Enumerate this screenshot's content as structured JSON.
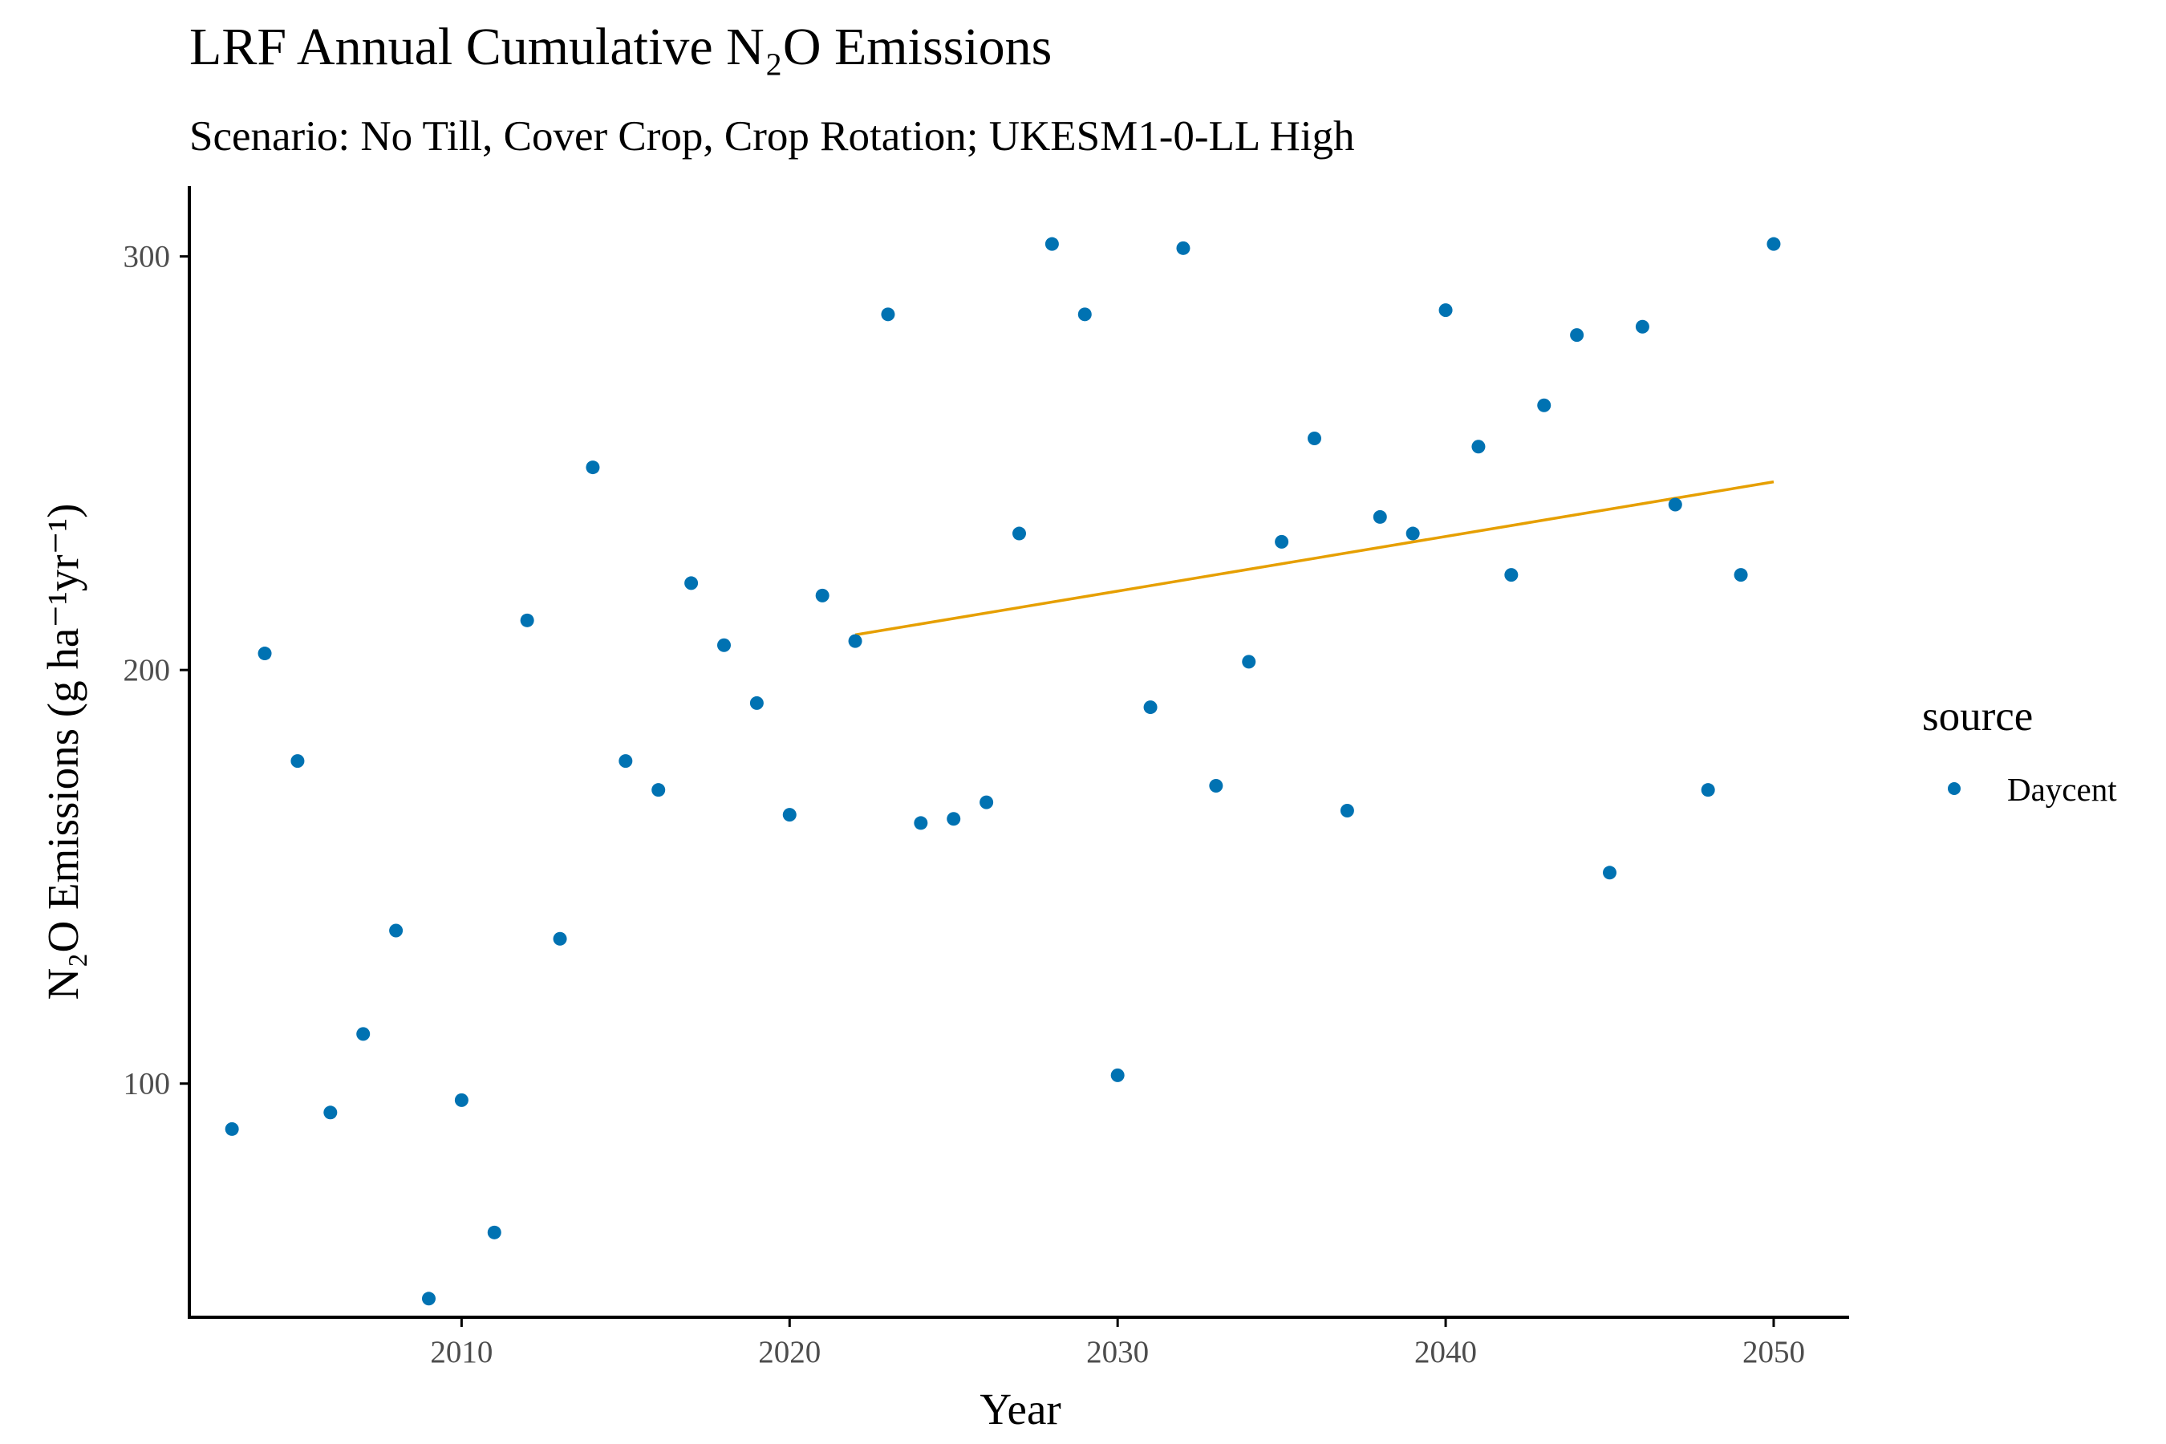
{
  "chart_data": {
    "type": "scatter",
    "title": "LRF Annual Cumulative N₂O Emissions",
    "subtitle": "Scenario: No Till, Cover Crop, Crop Rotation; UKESM1-0-LL High",
    "xlabel": "Year",
    "ylabel": "N₂O Emissions (g ha⁻¹yr⁻¹)",
    "xlim": [
      2001.7,
      2052.3
    ],
    "ylim": [
      43.5,
      317
    ],
    "x_ticks": [
      2010,
      2020,
      2030,
      2040,
      2050
    ],
    "y_ticks": [
      100,
      200,
      300
    ],
    "grid": false,
    "legend": {
      "title": "source",
      "position": "right",
      "entries": [
        "Daycent"
      ]
    },
    "series": [
      {
        "name": "Daycent",
        "color": "#0072B2",
        "points": [
          [
            2003,
            89
          ],
          [
            2004,
            204
          ],
          [
            2005,
            178
          ],
          [
            2006,
            93
          ],
          [
            2007,
            112
          ],
          [
            2008,
            137
          ],
          [
            2009,
            48
          ],
          [
            2010,
            96
          ],
          [
            2011,
            64
          ],
          [
            2012,
            212
          ],
          [
            2013,
            135
          ],
          [
            2014,
            249
          ],
          [
            2015,
            178
          ],
          [
            2016,
            171
          ],
          [
            2017,
            221
          ],
          [
            2018,
            206
          ],
          [
            2019,
            192
          ],
          [
            2020,
            165
          ],
          [
            2021,
            218
          ],
          [
            2022,
            207
          ],
          [
            2023,
            286
          ],
          [
            2024,
            163
          ],
          [
            2025,
            164
          ],
          [
            2026,
            168
          ],
          [
            2027,
            233
          ],
          [
            2028,
            303
          ],
          [
            2029,
            286
          ],
          [
            2030,
            102
          ],
          [
            2031,
            191
          ],
          [
            2032,
            302
          ],
          [
            2033,
            172
          ],
          [
            2034,
            202
          ],
          [
            2035,
            231
          ],
          [
            2036,
            256
          ],
          [
            2037,
            166
          ],
          [
            2038,
            237
          ],
          [
            2039,
            233
          ],
          [
            2040,
            287
          ],
          [
            2041,
            254
          ],
          [
            2042,
            223
          ],
          [
            2043,
            264
          ],
          [
            2044,
            281
          ],
          [
            2045,
            151
          ],
          [
            2046,
            283
          ],
          [
            2047,
            240
          ],
          [
            2048,
            171
          ],
          [
            2049,
            223
          ],
          [
            2050,
            303
          ]
        ]
      }
    ],
    "trend_line": {
      "color": "#E69F00",
      "points": [
        [
          2022,
          208.5
        ],
        [
          2050,
          245.5
        ]
      ]
    }
  }
}
